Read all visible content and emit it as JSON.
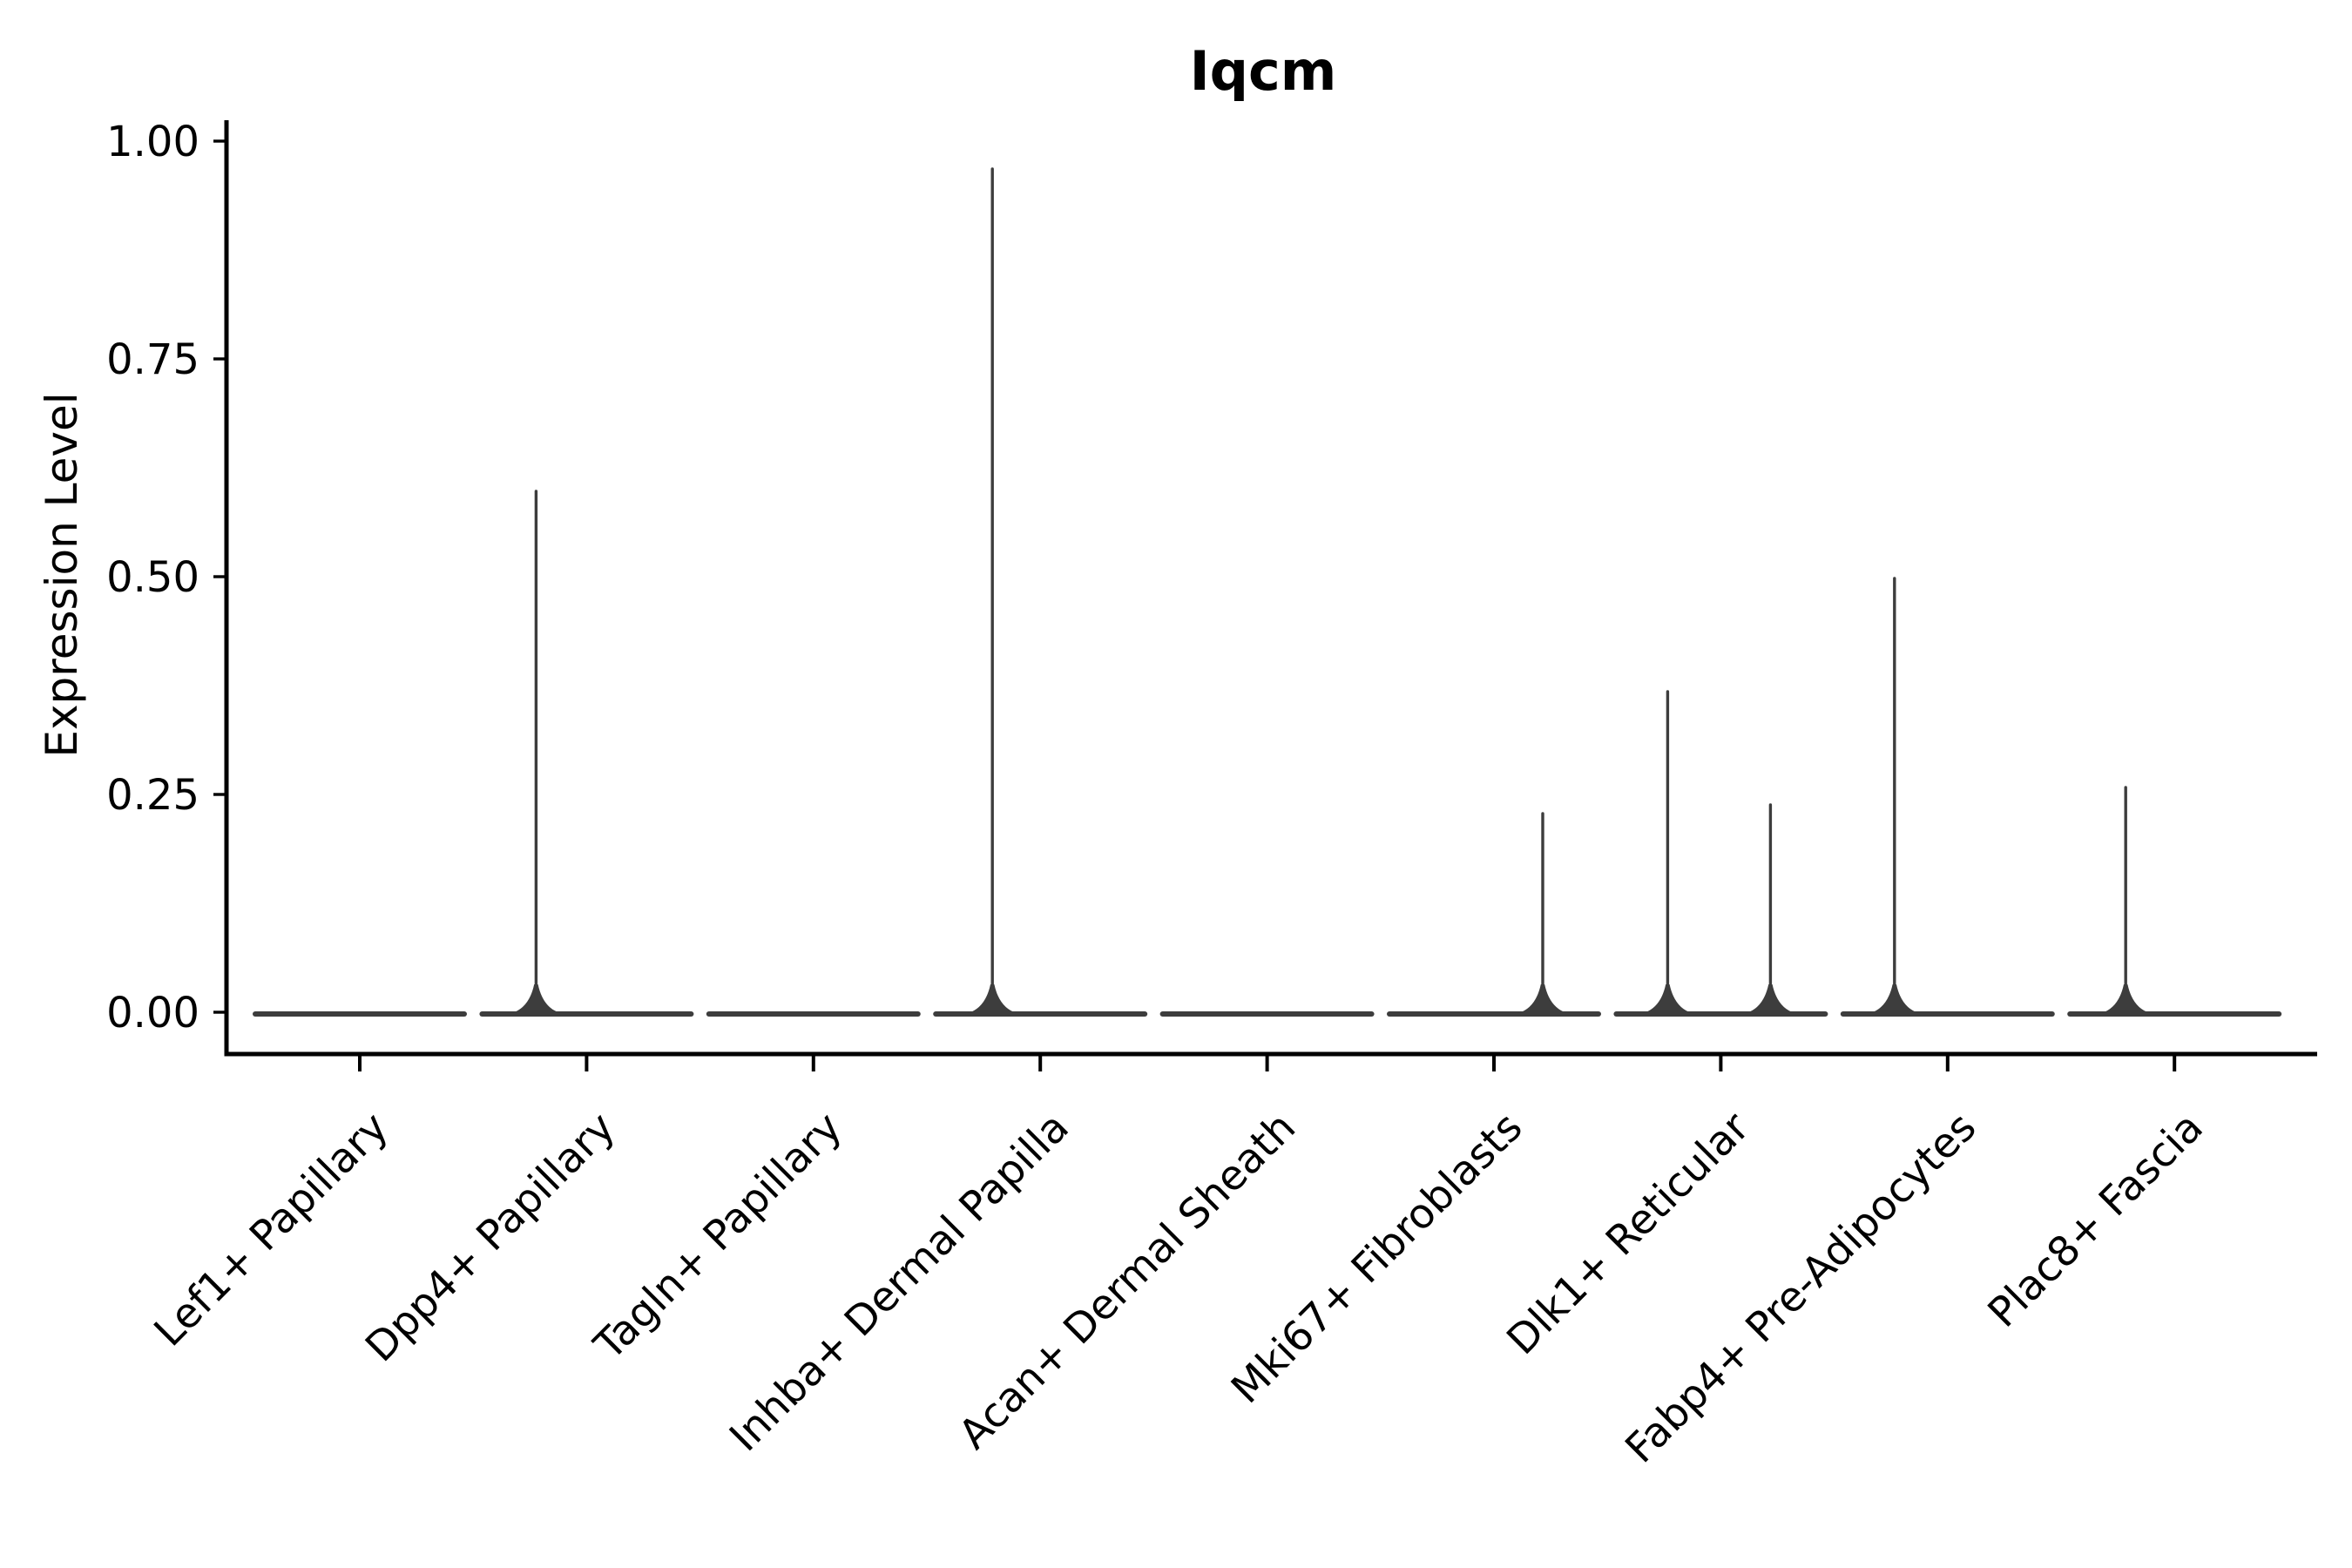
{
  "chart_data": {
    "type": "violin",
    "title": "Iqcm",
    "ylabel": "Expression Level",
    "xlabel": "",
    "ylim": [
      0.0,
      1.0
    ],
    "grid": false,
    "legend": "none",
    "yticks": [
      {
        "label": "1.00",
        "value": 1.0
      },
      {
        "label": "0.75",
        "value": 0.75
      },
      {
        "label": "0.50",
        "value": 0.5
      },
      {
        "label": "0.25",
        "value": 0.25
      },
      {
        "label": "0.00",
        "value": 0.0
      }
    ],
    "categories": [
      "Lef1+ Papillary",
      "Dpp4+ Papillary",
      "Tagln+ Papillary",
      "Inhba+ Dermal Papilla",
      "Acan+ Dermal Sheath",
      "Mki67+ Fibroblasts",
      "Dlk1+ Reticular",
      "Fabp4+ Pre-Adipocytes",
      "Plac8+ Fascia"
    ],
    "series": [
      {
        "category": "Lef1+ Papillary",
        "bulk_at": 0.0,
        "max_expression": 0.0,
        "spikes": []
      },
      {
        "category": "Dpp4+ Papillary",
        "bulk_at": 0.0,
        "max_expression": 0.6,
        "spikes": [
          {
            "value": 0.6,
            "dx": -58
          }
        ]
      },
      {
        "category": "Tagln+ Papillary",
        "bulk_at": 0.0,
        "max_expression": 0.0,
        "spikes": []
      },
      {
        "category": "Inhba+ Dermal Papilla",
        "bulk_at": 0.0,
        "max_expression": 0.97,
        "spikes": [
          {
            "value": 0.97,
            "dx": -55
          }
        ]
      },
      {
        "category": "Acan+ Dermal Sheath",
        "bulk_at": 0.0,
        "max_expression": 0.0,
        "spikes": []
      },
      {
        "category": "Mki67+ Fibroblasts",
        "bulk_at": 0.0,
        "max_expression": 0.23,
        "spikes": [
          {
            "value": 0.23,
            "dx": 56
          }
        ]
      },
      {
        "category": "Dlk1+ Reticular",
        "bulk_at": 0.0,
        "max_expression": 0.37,
        "spikes": [
          {
            "value": 0.37,
            "dx": -61
          },
          {
            "value": 0.24,
            "dx": 57
          }
        ]
      },
      {
        "category": "Fabp4+ Pre-Adipocytes",
        "bulk_at": 0.0,
        "max_expression": 0.5,
        "spikes": [
          {
            "value": 0.5,
            "dx": -61
          }
        ]
      },
      {
        "category": "Plac8+ Fascia",
        "bulk_at": 0.0,
        "max_expression": 0.26,
        "spikes": [
          {
            "value": 0.26,
            "dx": -56
          }
        ]
      }
    ],
    "colors": {
      "violin_line": "#3d3d3d",
      "axis": "#000000",
      "text": "#000000",
      "background": "#ffffff"
    }
  }
}
